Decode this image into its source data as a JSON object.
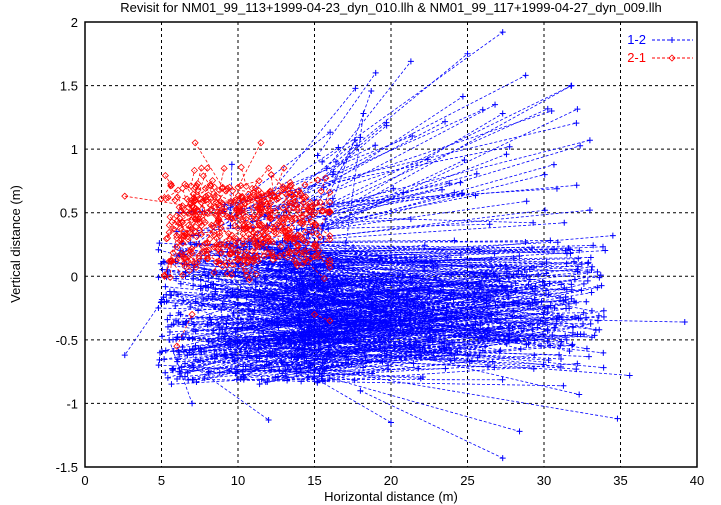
{
  "chart_data": {
    "type": "line",
    "title": "Revisit for NM01_99_113+1999-04-23_dyn_010.llh & NM01_99_117+1999-04-27_dyn_009.llh",
    "xlabel": "Horizontal distance (m)",
    "ylabel": "Vertical distance (m)",
    "xlim": [
      0,
      40
    ],
    "ylim": [
      -1.5,
      2
    ],
    "xticks": [
      "0",
      "5",
      "10",
      "15",
      "20",
      "25",
      "30",
      "35",
      "40"
    ],
    "yticks": [
      "-1.5",
      "-1",
      "-0.5",
      "0",
      "0.5",
      "1",
      "1.5",
      "2"
    ],
    "grid": true,
    "legend_position": "top-right",
    "series": [
      {
        "name": "1-2",
        "color": "#0000ff",
        "marker": "plus",
        "line": "dashed",
        "segments": [
          [
            15.5,
            0.9,
            27.3,
            1.92
          ],
          [
            16.2,
            0.8,
            28.8,
            1.58
          ],
          [
            14.8,
            0.5,
            31.8,
            1.5
          ],
          [
            15.6,
            0.7,
            30.5,
            1.3
          ],
          [
            16,
            0.55,
            33,
            1.07
          ],
          [
            15.2,
            0.95,
            19,
            1.6
          ],
          [
            15.8,
            0.85,
            21.3,
            1.69
          ],
          [
            16.4,
            0.9,
            25,
            1.75
          ],
          [
            15,
            0.6,
            26.8,
            1.35
          ],
          [
            15.7,
            0.45,
            27.3,
            1.28
          ],
          [
            14.5,
            0.3,
            33,
            0.52
          ],
          [
            13.5,
            0.1,
            34.5,
            0.32
          ],
          [
            15,
            -0.3,
            39.2,
            -0.36
          ],
          [
            16,
            -0.6,
            35.6,
            -0.78
          ],
          [
            14,
            -0.7,
            34.8,
            -1.12
          ],
          [
            16,
            -0.8,
            28.4,
            -1.22
          ],
          [
            18,
            -0.9,
            27.3,
            -1.43
          ],
          [
            17,
            -0.5,
            32.3,
            -0.93
          ],
          [
            7,
            -0.7,
            12,
            -1.13
          ],
          [
            15,
            -0.8,
            20,
            -1.15
          ],
          [
            5.5,
            -0.5,
            7,
            -1.0
          ],
          [
            5,
            -0.2,
            2.6,
            -0.62
          ],
          [
            9.5,
            0.4,
            9.6,
            0.88
          ],
          [
            17,
            0.2,
            18.2,
            1.28
          ]
        ],
        "cloud": {
          "count": 520,
          "seed": 7,
          "start_x": [
            4.8,
            16
          ],
          "start_y": [
            -0.85,
            0.3
          ],
          "end_x": [
            14,
            34
          ],
          "end_y": [
            -0.9,
            0.35
          ]
        },
        "fan": {
          "count": 45,
          "seed": 11,
          "start_x": [
            6,
            16
          ],
          "start_y": [
            0.15,
            0.6
          ],
          "end_x": [
            16,
            33
          ],
          "end_y": [
            0.4,
            1.5
          ]
        }
      },
      {
        "name": "2-1",
        "color": "#ff0000",
        "marker": "diamond",
        "line": "dashed",
        "segments": [
          [
            2.6,
            0.63,
            7,
            0.55
          ],
          [
            7.2,
            1.05,
            9,
            0.7
          ],
          [
            11.5,
            1.05,
            10,
            0.7
          ],
          [
            8,
            0.85,
            7,
            0.5
          ],
          [
            13,
            0.85,
            12,
            0.55
          ],
          [
            5.2,
            0.0,
            6,
            0.3
          ],
          [
            6,
            -0.55,
            7,
            -0.3
          ],
          [
            15,
            -0.3,
            16,
            -0.35
          ]
        ],
        "cloud": {
          "count": 260,
          "seed": 3,
          "start_x": [
            5.5,
            15.5
          ],
          "start_y": [
            0.1,
            0.72
          ],
          "end_x": [
            5.5,
            16
          ],
          "end_y": [
            0.05,
            0.8
          ]
        }
      }
    ]
  }
}
